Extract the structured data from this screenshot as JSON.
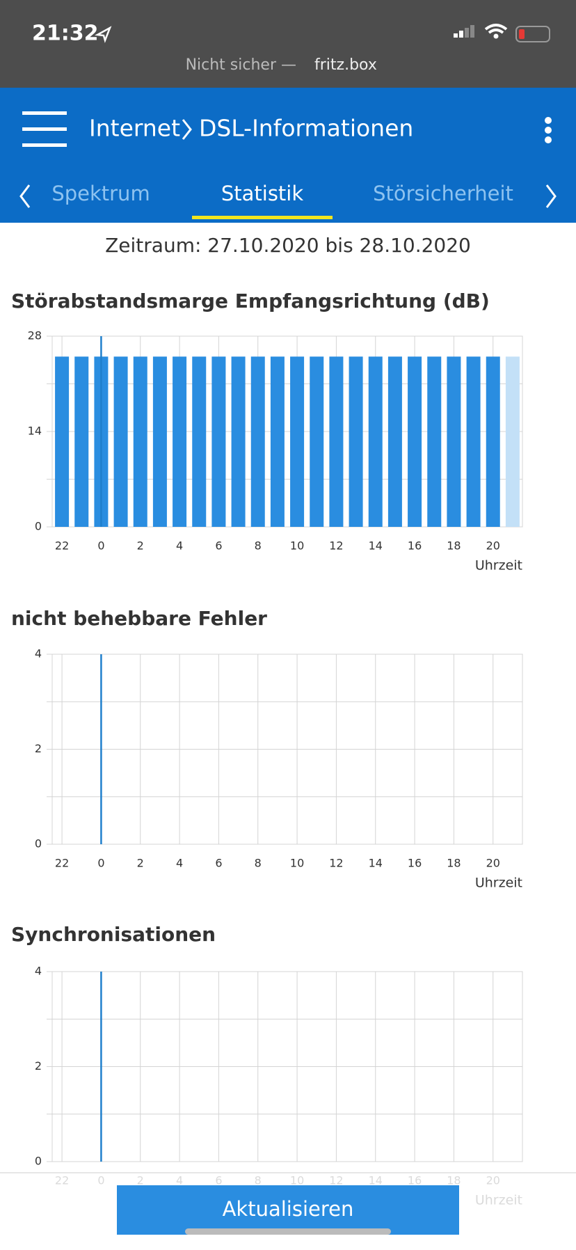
{
  "status_bar": {
    "time": "21:32",
    "security": "Nicht sicher —",
    "url": "fritz.box"
  },
  "header": {
    "section": "Internet",
    "page": "DSL-Informationen"
  },
  "tabs": [
    "Spektrum",
    "Statistik",
    "Störsicherheit"
  ],
  "active_tab": 1,
  "period": "Zeitraum: 27.10.2020 bis 28.10.2020",
  "button": "Aktualisieren",
  "chart_data": [
    {
      "type": "bar",
      "title": "Störabstandsmarge Empfangsrichtung (dB)",
      "xlabel": "Uhrzeit",
      "categories": [
        "22",
        null,
        "0",
        null,
        "2",
        null,
        "4",
        null,
        "6",
        null,
        "8",
        null,
        "10",
        null,
        "12",
        null,
        "14",
        null,
        "16",
        null,
        "18",
        null,
        "20",
        null
      ],
      "values": [
        25,
        25,
        25,
        25,
        25,
        25,
        25,
        25,
        25,
        25,
        25,
        25,
        25,
        25,
        25,
        25,
        25,
        25,
        25,
        25,
        25,
        25,
        25,
        25
      ],
      "color": "#2a8de0",
      "current_color": "#c3e0f7",
      "day_marker": "0",
      "ylim": [
        0,
        28
      ],
      "yticks": [
        0,
        14,
        28
      ],
      "yminor": [
        7,
        21
      ],
      "grid": true
    },
    {
      "type": "bar",
      "title": "nicht behebbare Fehler",
      "xlabel": "Uhrzeit",
      "categories": [
        "22",
        null,
        "0",
        null,
        "2",
        null,
        "4",
        null,
        "6",
        null,
        "8",
        null,
        "10",
        null,
        "12",
        null,
        "14",
        null,
        "16",
        null,
        "18",
        null,
        "20",
        null
      ],
      "values": [
        0,
        0,
        0,
        0,
        0,
        0,
        0,
        0,
        0,
        0,
        0,
        0,
        0,
        0,
        0,
        0,
        0,
        0,
        0,
        0,
        0,
        0,
        0,
        0
      ],
      "color": "#2a8de0",
      "day_marker": "0",
      "ylim": [
        0,
        4
      ],
      "yticks": [
        0,
        2,
        4
      ],
      "yminor": [
        1,
        3
      ],
      "grid": true
    },
    {
      "type": "bar",
      "title": "Synchronisationen",
      "xlabel": "Uhrzeit",
      "categories": [
        "22",
        null,
        "0",
        null,
        "2",
        null,
        "4",
        null,
        "6",
        null,
        "8",
        null,
        "10",
        null,
        "12",
        null,
        "14",
        null,
        "16",
        null,
        "18",
        null,
        "20",
        null
      ],
      "values": [
        0,
        0,
        0,
        0,
        0,
        0,
        0,
        0,
        0,
        0,
        0,
        0,
        0,
        0,
        0,
        0,
        0,
        0,
        0,
        0,
        0,
        0,
        0,
        0
      ],
      "color": "#2a8de0",
      "day_marker": "0",
      "ylim": [
        0,
        4
      ],
      "yticks": [
        0,
        2,
        4
      ],
      "yminor": [
        1,
        3
      ],
      "grid": true
    }
  ]
}
